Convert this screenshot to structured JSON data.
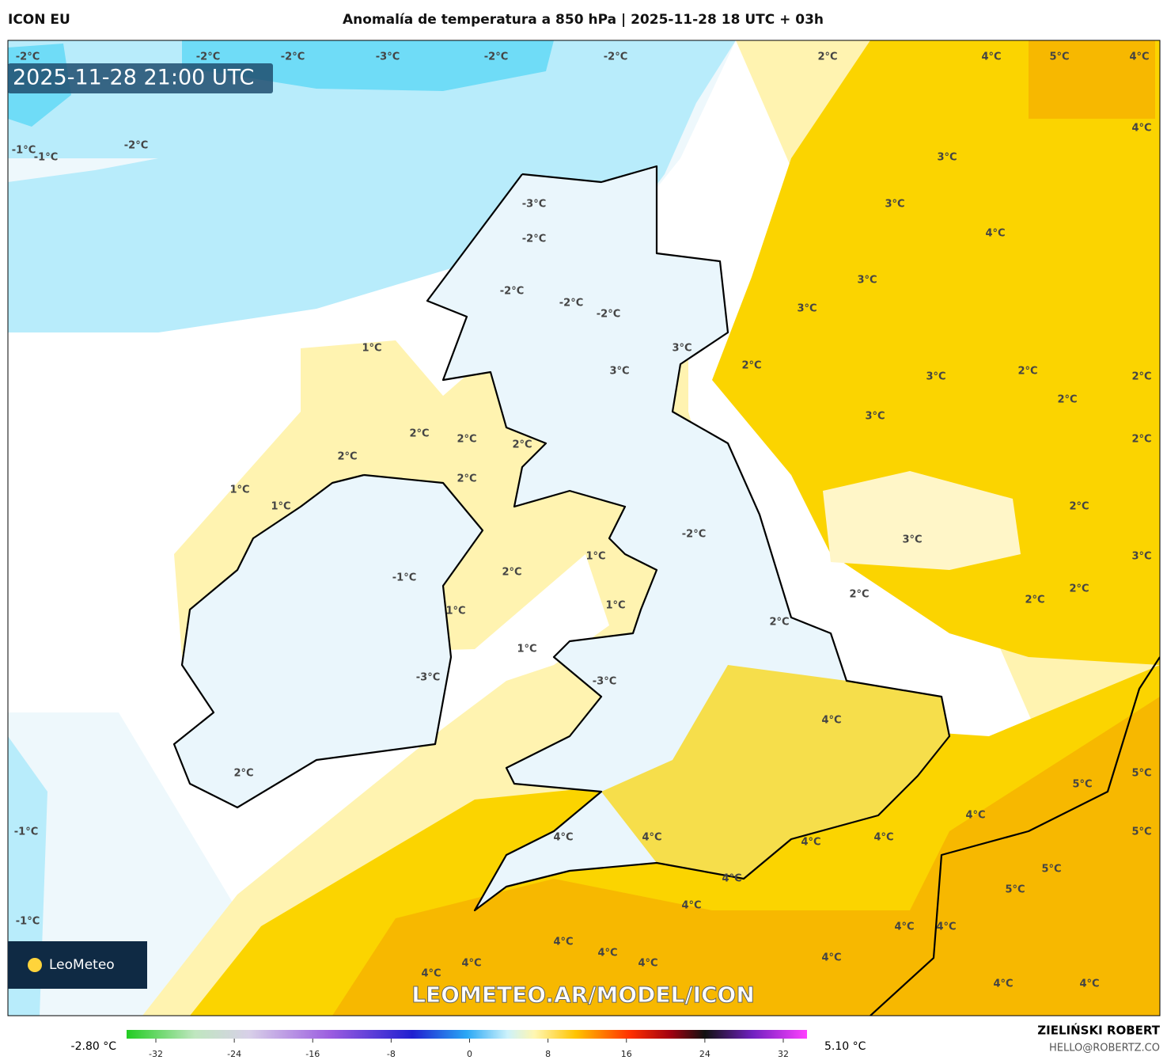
{
  "header": {
    "model": "ICON EU",
    "title": "Anomalía de temperatura a 850 hPa | 2025-11-28 18 UTC + 03h"
  },
  "timestamp": "2025-11-28 21:00 UTC",
  "contour_labels": [
    "-2°C",
    "-2°C",
    "-2°C",
    "-3°C",
    "-2°C",
    "-2°C",
    "2°C",
    "4°C",
    "5°C",
    "4°C",
    "4°C",
    "-1°C",
    "-1°C",
    "-2°C",
    "3°C",
    "-3°C",
    "3°C",
    "-2°C",
    "4°C",
    "-2°C",
    "-2°C",
    "3°C",
    "-2°C",
    "3°C",
    "1°C",
    "3°C",
    "2°C",
    "3°C",
    "3°C",
    "2°C",
    "2°C",
    "2°C",
    "3°C",
    "2°C",
    "2°C",
    "2°C",
    "2°C",
    "2°C",
    "2°C",
    "1°C",
    "1°C",
    "2°C",
    "-2°C",
    "3°C",
    "1°C",
    "3°C",
    "2°C",
    "-1°C",
    "2°C",
    "2°C",
    "2°C",
    "1°C",
    "1°C",
    "2°C",
    "1°C",
    "-3°C",
    "-3°C",
    "4°C",
    "2°C",
    "5°C",
    "5°C",
    "4°C",
    "-1°C",
    "5°C",
    "4°C",
    "4°C",
    "4°C",
    "4°C",
    "5°C",
    "4°C",
    "5°C",
    "4°C",
    "-1°C",
    "4°C",
    "4°C",
    "4°C",
    "4°C",
    "4°C",
    "4°C",
    "4°C",
    "4°C",
    "4°C",
    "4°C"
  ],
  "watermark": "LEOMETEO.AR/MODEL/ICON",
  "logo": "LeoMeteo",
  "colorbar": {
    "min_label": "-2.80 °C",
    "max_label": "5.10 °C",
    "ticks": [
      -32,
      -24,
      -16,
      -8,
      0,
      8,
      16,
      24,
      32
    ]
  },
  "author": {
    "name": "ZIELIŃSKI ROBERT",
    "email": "HELLO@ROBERTZ.CO"
  }
}
